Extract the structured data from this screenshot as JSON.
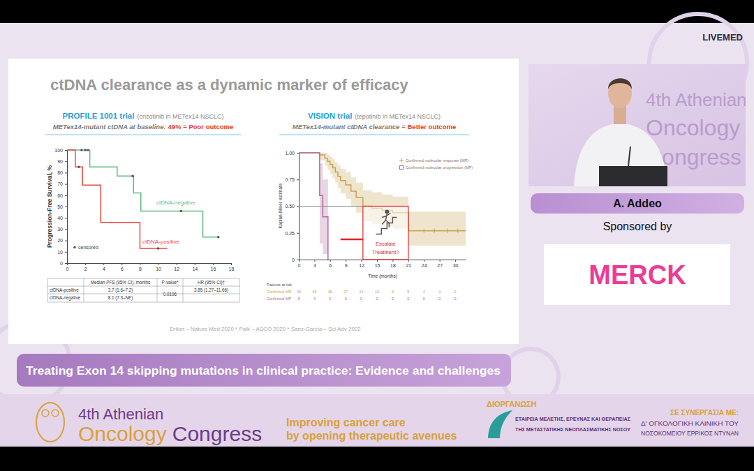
{
  "page": {
    "channel_logo": "LIVEMED",
    "slide_title": "ctDNA clearance as a dynamic marker of efficacy",
    "citation": "Drilon – Nature Med 2020 * Paik – ASCO 2020 * Sanz-Garcia – Sci Adv 2022",
    "talk_title": "Treating Exon 14 skipping mutations in clinical practice: Evidence and challenges",
    "speaker": "A. Addeo",
    "sponsored_by": "Sponsored by",
    "sponsor_logo": "MERCK",
    "video_watermark": [
      "4th Athenian",
      "Oncology",
      "Congress"
    ],
    "banner": {
      "event_line1": "4th Athenian",
      "event_word1": "Oncology",
      "event_word2": "Congress",
      "slogan": [
        "Improving cancer care",
        "by opening therapeutic avenues"
      ],
      "organizer_heading": "ΔΙΟΡΓΑΝΩΣΗ",
      "organizer": [
        "ΕΤΑΙΡΕΙΑ ΜΕΛΕΤΗΣ, ΕΡΕΥΝΑΣ ΚΑΙ ΘΕΡΑΠΕΙΑΣ",
        "ΤΗΣ ΜΕΤΑΣΤΑΤΙΚΗΣ ΝΕΟΠΛΑΣΜΑΤΙΚΗΣ ΝΟΣΟΥ"
      ],
      "partner_heading": "ΣΕ ΣΥΝΕΡΓΑΣΙΑ ΜΕ:",
      "partner": [
        "Δ' ΟΓΚΟΛΟΓΙΚΗ ΚΛΙΝΙΚΗ ΤΟΥ",
        "ΝΟΣΟΚΟΜΕΙΟΥ ΕΡΡΙΚΟΣ ΝΤΥΝΑΝ"
      ]
    }
  },
  "chart_data": [
    {
      "type": "line",
      "title": "PROFILE 1001 trial",
      "title_note": "(crizotinib in METex14 NSCLC)",
      "subtitle": "METex14-mutant ctDNA at baseline:",
      "subtitle_highlight": "49% = Poor outcome",
      "y_label": "Progression-Free Survival, %",
      "xlim": [
        0,
        18
      ],
      "xticks": [
        0,
        2,
        4,
        6,
        8,
        10,
        12,
        14,
        16,
        18
      ],
      "ylim": [
        0,
        100
      ],
      "yticks": [
        0,
        10,
        20,
        30,
        40,
        50,
        60,
        70,
        80,
        90,
        100
      ],
      "grid": false,
      "legend": "bottom-left",
      "series": [
        {
          "name": "ctDNA-negative",
          "color": "#5dbb84",
          "line_style": "step",
          "x": [
            0,
            2.5,
            5.5,
            7.3,
            8.1,
            14.9,
            16.6
          ],
          "values": [
            100,
            85,
            77,
            62,
            46,
            23,
            23
          ]
        },
        {
          "name": "ctDNA-positive",
          "color": "#e8493f",
          "line_style": "step",
          "x": [
            0,
            0.9,
            1.7,
            3.7,
            8.0,
            11.0
          ],
          "values": [
            100,
            85,
            69,
            36,
            13,
            13
          ]
        },
        {
          "name": "censored",
          "type": "scatter",
          "marker": "dot",
          "color": "#555555",
          "x": [
            1.6,
            2.0,
            2.3,
            1.3,
            7.2,
            12.5,
            16.6,
            10.0
          ],
          "values": [
            100,
            100,
            100,
            85,
            77,
            46,
            23,
            13
          ]
        }
      ],
      "table": {
        "columns": [
          null,
          "Median PFS (95% CI), months",
          "P-value*",
          "HR (95% CI)†"
        ],
        "rows": [
          [
            "ctDNA-positive",
            "3.7 (1.6–7.2)",
            "0.0106",
            "3.85 (1.27–11.66)"
          ],
          [
            "ctDNA-negative",
            "8.1 (7.3–NE)",
            null,
            null
          ]
        ]
      }
    },
    {
      "type": "line",
      "title": "VISION trial",
      "title_note": "(tepotinib in METex14 NSCLC)",
      "subtitle": "METex14-mutant ctDNA clearance =",
      "subtitle_highlight": "Better outcome",
      "x_label": "Time (months)",
      "y_label": "Kaplan-Meier estimate",
      "xlim": [
        0,
        32
      ],
      "xticks": [
        0,
        3,
        6,
        9,
        12,
        15,
        18,
        21,
        24,
        27,
        30
      ],
      "ylim": [
        0,
        1
      ],
      "yticks": [
        0,
        0.25,
        {
          "value": 0.5,
          "label": "0.50"
        },
        0.75,
        {
          "value": 1,
          "label": "1.00"
        }
      ],
      "grid": false,
      "legend": "top-right",
      "series": [
        {
          "name": "Confirmed molecular response (MR)",
          "color": "#c7a24e",
          "line_style": "step",
          "marker": "plus",
          "x": [
            0,
            4,
            5,
            5.5,
            6,
            6.5,
            7,
            7.5,
            8,
            9,
            10,
            11,
            12.3,
            14,
            16,
            18,
            21,
            32
          ],
          "values": [
            1,
            0.98,
            0.95,
            0.92,
            0.89,
            0.86,
            0.82,
            0.78,
            0.74,
            0.7,
            0.64,
            0.58,
            0.5,
            0.48,
            0.46,
            0.44,
            0.27,
            0.27
          ],
          "ci_lower": [
            1,
            0.93,
            0.88,
            0.84,
            0.8,
            0.76,
            0.72,
            0.67,
            0.62,
            0.57,
            0.5,
            0.44,
            0.36,
            0.33,
            0.31,
            0.29,
            0.13,
            0.13
          ],
          "ci_upper": [
            1,
            1,
            1,
            0.98,
            0.96,
            0.94,
            0.91,
            0.88,
            0.85,
            0.82,
            0.77,
            0.72,
            0.65,
            0.63,
            0.61,
            0.59,
            0.45,
            0.45
          ],
          "censored": {
            "x": [
              24,
              26,
              28.5,
              30.5
            ],
            "values": [
              0.27,
              0.27,
              0.27,
              0.27
            ]
          }
        },
        {
          "name": "Confirmed molecular progression (MP)",
          "color": "#b3679e",
          "line_style": "step",
          "marker": "square",
          "x": [
            0,
            4.0,
            4.6,
            5.6
          ],
          "values": [
            1,
            0.6,
            0.4,
            0
          ],
          "ci_lower": [
            1,
            0.15,
            0.05,
            0
          ],
          "ci_upper": [
            1,
            0.9,
            0.75,
            0
          ]
        }
      ],
      "median_reference": {
        "x": 12.3,
        "value": 0.5
      },
      "highlight_segment": {
        "x": [
          8,
          12.3
        ],
        "value": 0.19,
        "color": "#e0262a"
      },
      "annotation": {
        "text": [
          "Escalate",
          "Treatment?"
        ],
        "x": [
          12.3,
          21
        ],
        "values": [
          0,
          0.5
        ],
        "color": "#e0262a"
      },
      "risk_table": {
        "title": "Patients at risk",
        "times": [
          0,
          3,
          6,
          9,
          12,
          15,
          18,
          21,
          24,
          27,
          30
        ],
        "rows": [
          {
            "name": "Confirmed MR",
            "color": "#c7a24e",
            "values": [
              46,
              46,
              36,
              27,
              14,
              10,
              6,
              5,
              4,
              3,
              2
            ]
          },
          {
            "name": "Confirmed MP",
            "color": "#b3679e",
            "values": [
              5,
              4,
              0,
              0,
              0,
              0,
              0,
              0,
              0,
              0,
              0
            ]
          }
        ]
      }
    }
  ]
}
